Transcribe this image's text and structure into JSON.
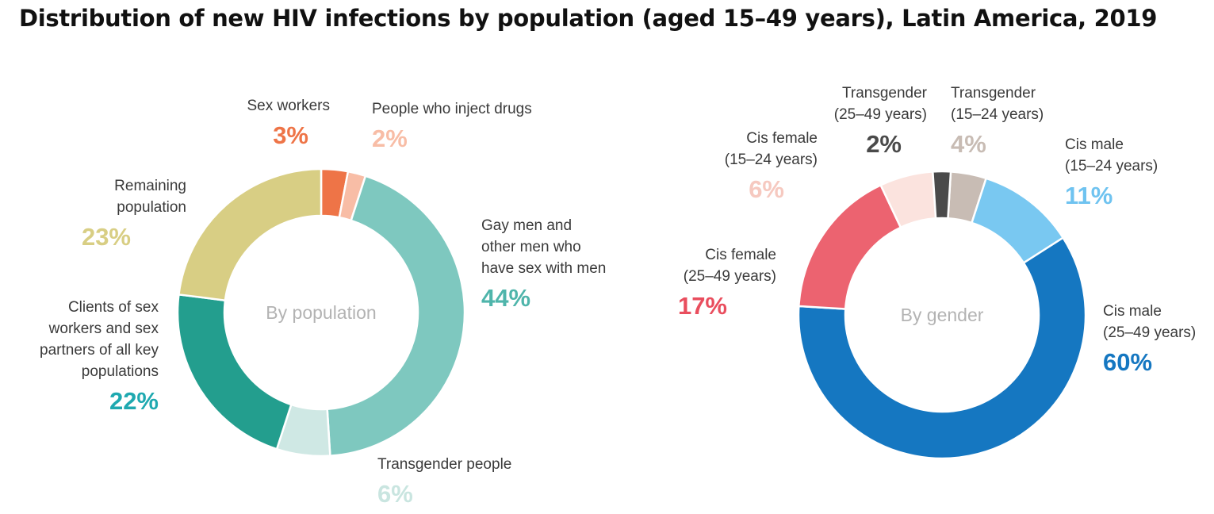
{
  "title": "Distribution of new HIV infections by population (aged 15–49 years), Latin America, 2019",
  "chart_data": [
    {
      "type": "pie",
      "title": "By population",
      "slices": [
        {
          "label": [
            "Sex workers"
          ],
          "pct_label": "3%",
          "value": 3,
          "color": "#EE7447",
          "pct_color": "#EE7447"
        },
        {
          "label": [
            "People who inject drugs"
          ],
          "pct_label": "2%",
          "value": 2,
          "color": "#F8BDA6",
          "pct_color": "#F8BDA6"
        },
        {
          "label": [
            "Gay men and",
            "other men who",
            "have sex with men"
          ],
          "pct_label": "44%",
          "value": 44,
          "color": "#7EC8BF",
          "pct_color": "#4FB5AB"
        },
        {
          "label": [
            "Transgender people"
          ],
          "pct_label": "6%",
          "value": 6,
          "color": "#CFE8E4",
          "pct_color": "#C9E5E0"
        },
        {
          "label": [
            "Clients of sex",
            "workers and sex",
            "partners of all key",
            "populations"
          ],
          "pct_label": "22%",
          "value": 22,
          "color": "#239E8E",
          "pct_color": "#1FA9B0"
        },
        {
          "label": [
            "Remaining",
            "population"
          ],
          "pct_label": "23%",
          "value": 23,
          "color": "#D8CE84",
          "pct_color": "#D8CE84"
        }
      ]
    },
    {
      "type": "pie",
      "title": "By gender",
      "slices": [
        {
          "label": [
            "Transgender",
            "(15–24 years)"
          ],
          "pct_label": "4%",
          "value": 4,
          "color": "#C8BCB4",
          "pct_color": "#C8BCB4"
        },
        {
          "label": [
            "Cis male",
            "(15–24 years)"
          ],
          "pct_label": "11%",
          "value": 11,
          "color": "#79C8F1",
          "pct_color": "#6FC3F0"
        },
        {
          "label": [
            "Cis male",
            "(25–49 years)"
          ],
          "pct_label": "60%",
          "value": 60,
          "color": "#1577C1",
          "pct_color": "#1577C1"
        },
        {
          "label": [
            "Cis female",
            "(25–49 years)"
          ],
          "pct_label": "17%",
          "value": 17,
          "color": "#EC6370",
          "pct_color": "#E94E5E"
        },
        {
          "label": [
            "Cis female",
            "(15–24 years)"
          ],
          "pct_label": "6%",
          "value": 6,
          "color": "#FBE3DE",
          "pct_color": "#F6C9C0"
        },
        {
          "label": [
            "Transgender",
            "(25–49 years)"
          ],
          "pct_label": "2%",
          "value": 2,
          "color": "#4A4A4A",
          "pct_color": "#4A4A4A"
        }
      ]
    }
  ]
}
